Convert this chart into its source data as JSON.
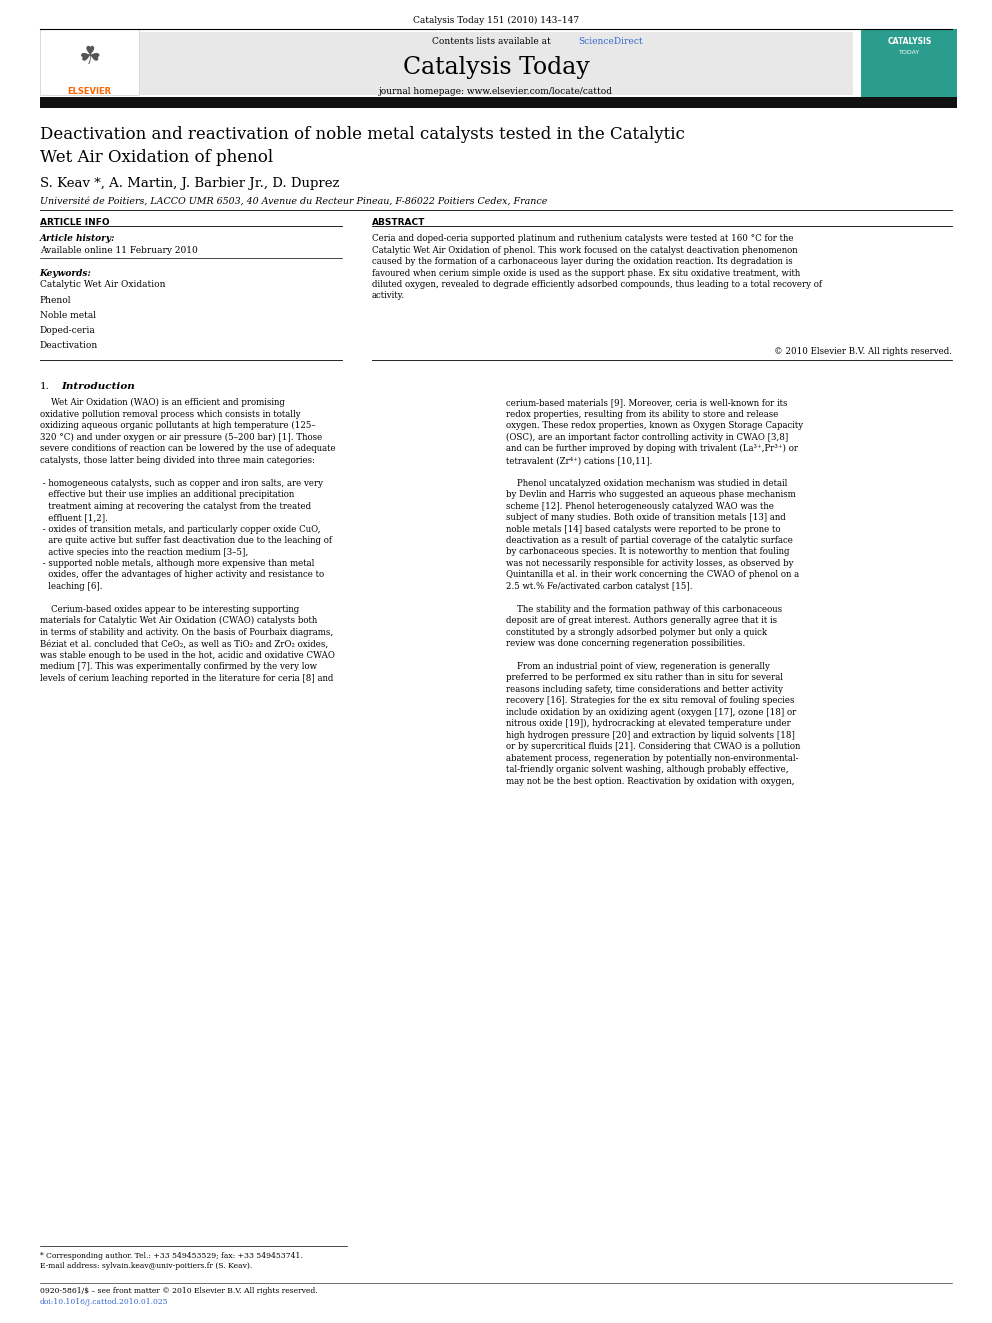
{
  "journal_line": "Catalysis Today 151 (2010) 143–147",
  "contents_line": "Contents lists available at ",
  "sciencedirect": "ScienceDirect",
  "journal_name": "Catalysis Today",
  "journal_homepage": "journal homepage: www.elsevier.com/locate/cattod",
  "title": "Deactivation and reactivation of noble metal catalysts tested in the Catalytic\nWet Air Oxidation of phenol",
  "authors": "S. Keav *, A. Martin, J. Barbier Jr., D. Duprez",
  "affiliation": "Université de Poitiers, LACCO UMR 6503, 40 Avenue du Recteur Pineau, F-86022 Poitiers Cedex, France",
  "article_info_title": "ARTICLE INFO",
  "abstract_title": "ABSTRACT",
  "article_history_label": "Article history:",
  "available_online": "Available online 11 February 2010",
  "keywords_label": "Keywords:",
  "keywords": [
    "Catalytic Wet Air Oxidation",
    "Phenol",
    "Noble metal",
    "Doped-ceria",
    "Deactivation"
  ],
  "abstract_wrapped": "Ceria and doped-ceria supported platinum and ruthenium catalysts were tested at 160 °C for the\nCatalytic Wet Air Oxidation of phenol. This work focused on the catalyst deactivation phenomenon\ncaused by the formation of a carbonaceous layer during the oxidation reaction. Its degradation is\nfavoured when cerium simple oxide is used as the support phase. Ex situ oxidative treatment, with\ndiluted oxygen, revealed to degrade efficiently adsorbed compounds, thus leading to a total recovery of\nactivity.",
  "copyright": "© 2010 Elsevier B.V. All rights reserved.",
  "footer_line1": "0920-5861/$ – see front matter © 2010 Elsevier B.V. All rights reserved.",
  "footer_line2": "doi:10.1016/j.cattod.2010.01.025",
  "footnote1": "* Corresponding author. Tel.: +33 549453529; fax: +33 549453741.",
  "footnote2": "E-mail address: sylvain.keav@univ-poitiers.fr (S. Keav).",
  "col1_text": "    Wet Air Oxidation (WAO) is an efficient and promising\noxidative pollution removal process which consists in totally\noxidizing aqueous organic pollutants at high temperature (125–\n320 °C) and under oxygen or air pressure (5–200 bar) [1]. Those\nsevere conditions of reaction can be lowered by the use of adequate\ncatalysts, those latter being divided into three main categories:\n\n - homogeneous catalysts, such as copper and iron salts, are very\n   effective but their use implies an additional precipitation\n   treatment aiming at recovering the catalyst from the treated\n   effluent [1,2].\n - oxides of transition metals, and particularly copper oxide CuO,\n   are quite active but suffer fast deactivation due to the leaching of\n   active species into the reaction medium [3–5],\n - supported noble metals, although more expensive than metal\n   oxides, offer the advantages of higher activity and resistance to\n   leaching [6].\n\n    Cerium-based oxides appear to be interesting supporting\nmaterials for Catalytic Wet Air Oxidation (CWAO) catalysts both\nin terms of stability and activity. On the basis of Pourbaix diagrams,\nBéziat et al. concluded that CeO₂, as well as TiO₂ and ZrO₂ oxides,\nwas stable enough to be used in the hot, acidic and oxidative CWAO\nmedium [7]. This was experimentally confirmed by the very low\nlevels of cerium leaching reported in the literature for ceria [8] and",
  "col2_text": "cerium-based materials [9]. Moreover, ceria is well-known for its\nredox properties, resulting from its ability to store and release\noxygen. These redox properties, known as Oxygen Storage Capacity\n(OSC), are an important factor controlling activity in CWAO [3,8]\nand can be further improved by doping with trivalent (La³⁺,Pr³⁺) or\ntetravalent (Zr⁴⁺) cations [10,11].\n\n    Phenol uncatalyzed oxidation mechanism was studied in detail\nby Devlin and Harris who suggested an aqueous phase mechanism\nscheme [12]. Phenol heterogeneously catalyzed WAO was the\nsubject of many studies. Both oxide of transition metals [13] and\nnoble metals [14] based catalysts were reported to be prone to\ndeactivation as a result of partial coverage of the catalytic surface\nby carbonaceous species. It is noteworthy to mention that fouling\nwas not necessarily responsible for activity losses, as observed by\nQuintanilla et al. in their work concerning the CWAO of phenol on a\n2.5 wt.% Fe/activated carbon catalyst [15].\n\n    The stability and the formation pathway of this carbonaceous\ndeposit are of great interest. Authors generally agree that it is\nconstituted by a strongly adsorbed polymer but only a quick\nreview was done concerning regeneration possibilities.\n\n    From an industrial point of view, regeneration is generally\npreferred to be performed ex situ rather than in situ for several\nreasons including safety, time considerations and better activity\nrecovery [16]. Strategies for the ex situ removal of fouling species\ninclude oxidation by an oxidizing agent (oxygen [17], ozone [18] or\nnitrous oxide [19]), hydrocracking at elevated temperature under\nhigh hydrogen pressure [20] and extraction by liquid solvents [18]\nor by supercritical fluids [21]. Considering that CWAO is a pollution\nabatement process, regeneration by potentially non-environmental-\ntal-friendly organic solvent washing, although probably effective,\nmay not be the best option. Reactivation by oxidation with oxygen,",
  "bg_color": "#ffffff",
  "sciencedirect_color": "#3366cc",
  "orange_color": "#ff6600",
  "teal_color": "#2a9d8f",
  "doi_color": "#3366cc"
}
